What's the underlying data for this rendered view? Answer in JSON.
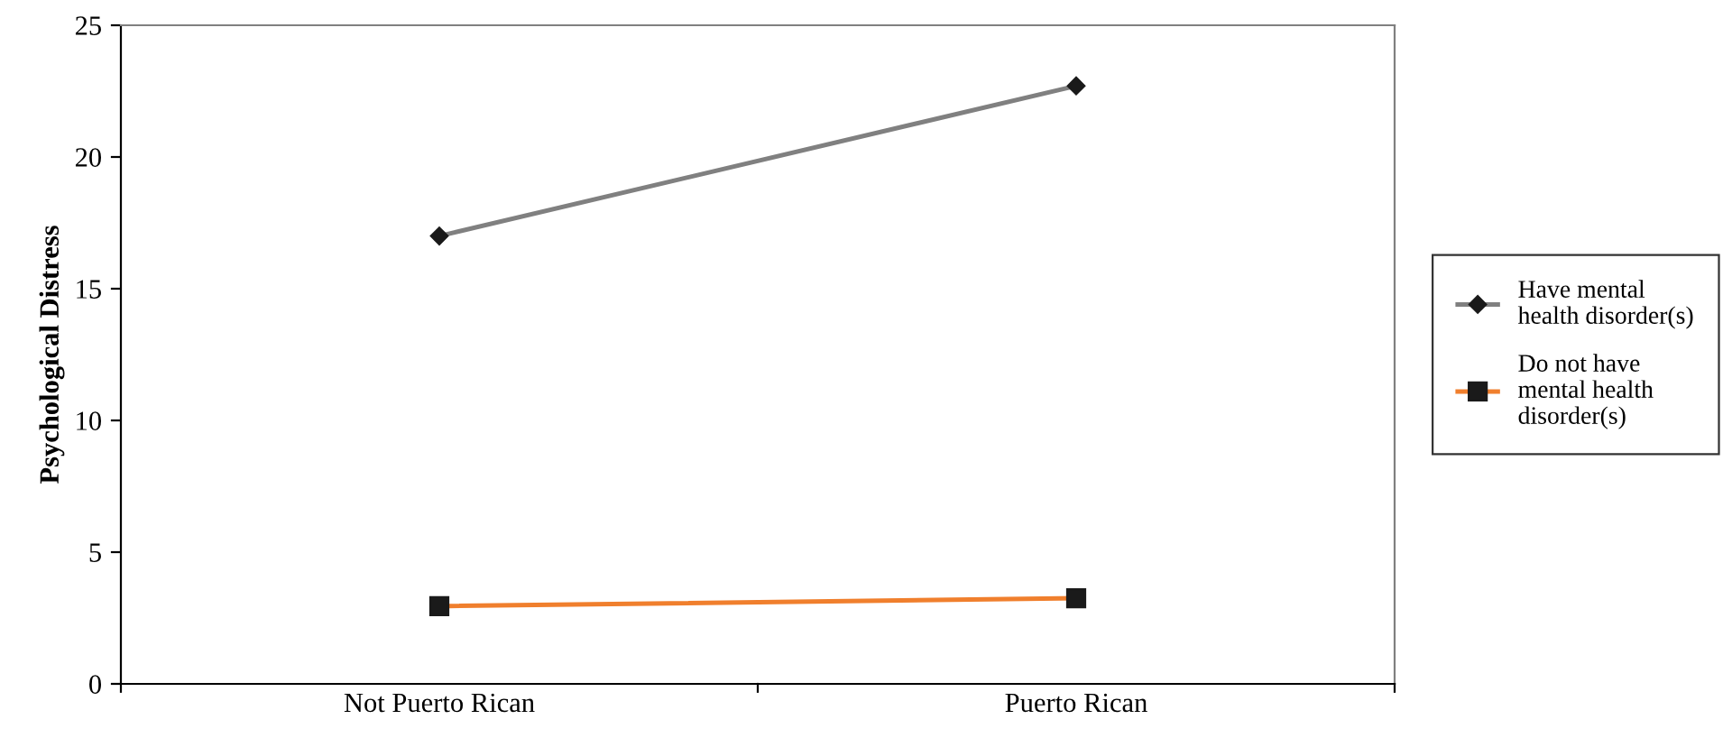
{
  "chart_data": {
    "type": "line",
    "ylabel": "Psychological Distress",
    "categories": [
      "Not Puerto Rican",
      "Puerto Rican"
    ],
    "series": [
      {
        "name": "Have mental\nhealth disorder(s)",
        "color": "#808080",
        "marker": "diamond",
        "values": [
          17.0,
          22.7
        ]
      },
      {
        "name": "Do not have\nmental health\ndisorder(s)",
        "color": "#f07f2d",
        "marker": "square",
        "values": [
          2.95,
          3.25
        ]
      }
    ],
    "ylim": [
      0,
      25
    ],
    "yticks": [
      0,
      5,
      10,
      15,
      20,
      25
    ],
    "grid": false,
    "legend": "right",
    "line_style": "solid"
  }
}
